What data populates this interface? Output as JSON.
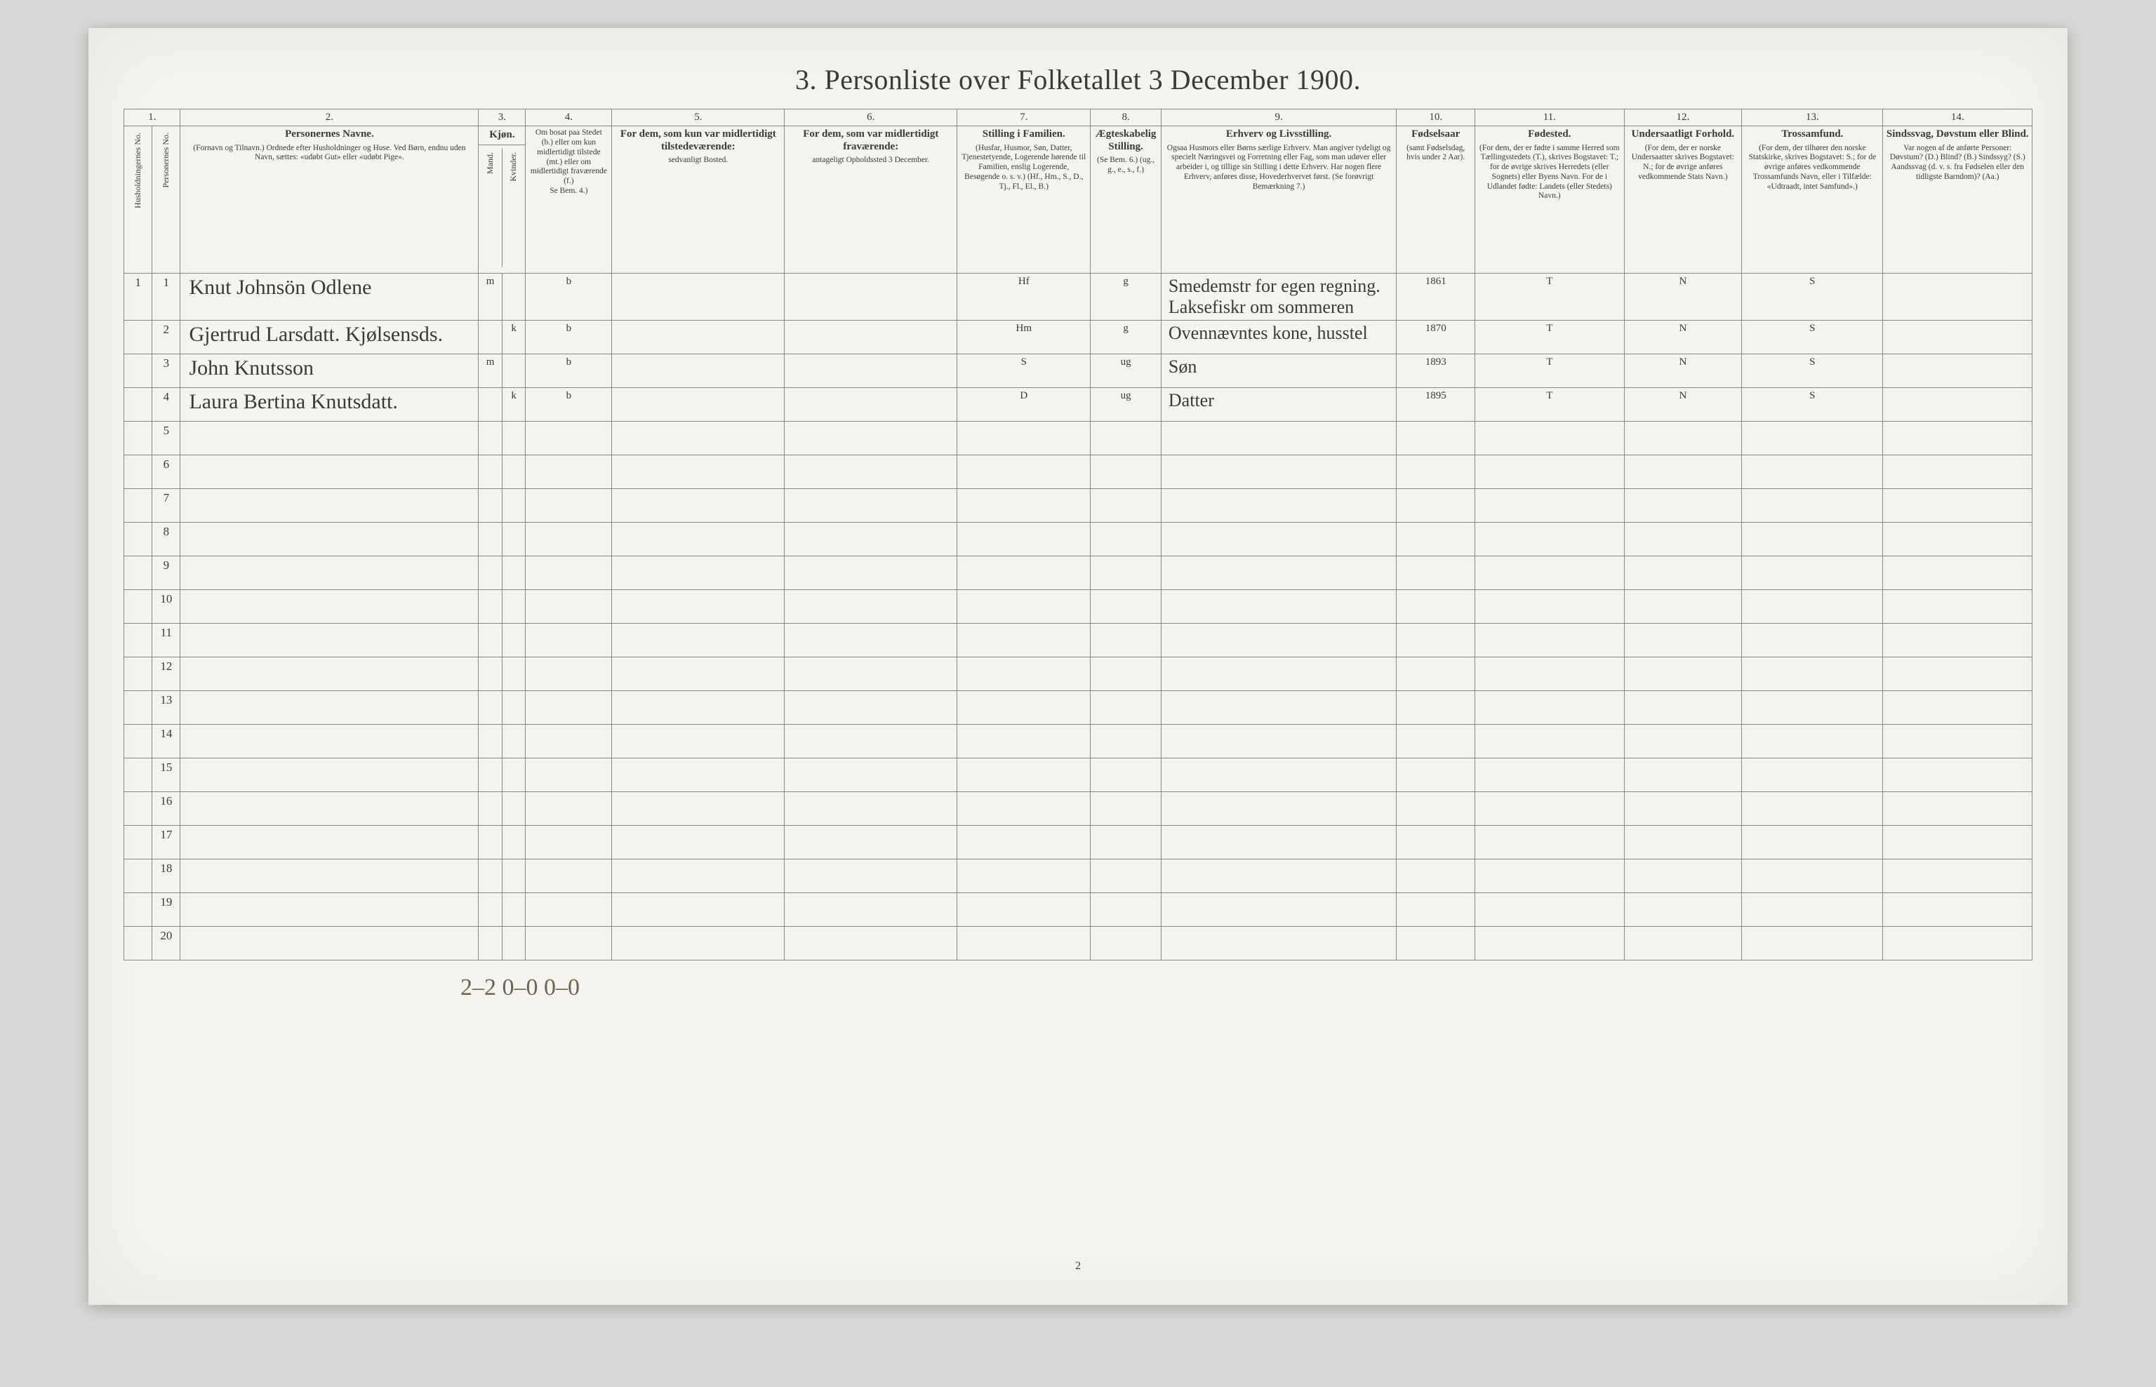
{
  "title": "3. Personliste over Folketallet 3 December 1900.",
  "colnums": [
    "1.",
    "2.",
    "3.",
    "4.",
    "5.",
    "6.",
    "7.",
    "8.",
    "9.",
    "10.",
    "11.",
    "12.",
    "13.",
    "14."
  ],
  "headers": {
    "hh": "Husholdningernes No.",
    "pn": "Personernes No.",
    "c2t": "Personernes Navne.",
    "c2s": "(Fornavn og Tilnavn.) Ordnede efter Husholdninger og Huse. Ved Børn, endnu uden Navn, sættes: «udøbt Gut» eller «udøbt Pige».",
    "c3t": "Kjøn.",
    "c3a": "Mand.",
    "c3b": "Kvinder.",
    "c4t": "Om bosat paa Stedet (b.) eller om kun midlertidigt tilstede (mt.) eller om midlertidigt fraværende (f.)",
    "c4s": "Se Bem. 4.)",
    "c5t": "For dem, som kun var midlertidigt tilstedeværende:",
    "c5s": "sedvanligt Bosted.",
    "c6t": "For dem, som var midlertidigt fraværende:",
    "c6s": "antageligt Opholdssted 3 December.",
    "c7t": "Stilling i Familien.",
    "c7s": "(Husfar, Husmor, Søn, Datter, Tjenestetyende, Logerende hørende til Familien, enslig Logerende, Besøgende o. s. v.) (Hf., Hm., S., D., Tj., Fl., El., B.)",
    "c8t": "Ægteskabelig Stilling.",
    "c8s": "(Se Bem. 6.) (ug., g., e., s., f.)",
    "c9t": "Erhverv og Livsstilling.",
    "c9s": "Ogsaa Husmors eller Børns særlige Erhverv. Man angiver tydeligt og specielt Næringsvei og Forretning eller Fag, som man udøver eller arbeider i, og tillige sin Stilling i dette Erhverv. Har nogen flere Erhverv, anføres disse, Hovederhvervet først. (Se forøvrigt Bemærkning 7.)",
    "c10t": "Fødselsaar",
    "c10s": "(samt Fødselsdag, hvis under 2 Aar).",
    "c11t": "Fødested.",
    "c11s": "(For dem, der er fødte i samme Herred som Tællingsstedets (T.), skrives Bogstavet: T.; for de øvrige skrives Herredets (eller Sognets) eller Byens Navn. For de i Udlandet fødte: Landets (eller Stedets) Navn.)",
    "c12t": "Undersaatligt Forhold.",
    "c12s": "(For dem, der er norske Undersaatter skrives Bogstavet: N.; for de øvrige anføres vedkommende Stats Navn.)",
    "c13t": "Trossamfund.",
    "c13s": "(For dem, der tilhører den norske Statskirke, skrives Bogstavet: S.; for de øvrige anføres vedkommende Trossamfunds Navn, eller i Tilfælde: «Udtraadt, intet Samfund».)",
    "c14t": "Sindssvag, Døvstum eller Blind.",
    "c14s": "Var nogen af de anførte Personer: Døvstum? (D.) Blind? (B.) Sindssyg? (S.) Aandssvag (d. v. s. fra Fødselen eller den tidligste Barndom)? (Aa.)"
  },
  "rows": [
    {
      "hh": "1",
      "pn": "1",
      "name": "Knut Johnsön Odlene",
      "sex_m": "m",
      "sex_k": "",
      "res": "b",
      "c5": "",
      "c6": "",
      "fam": "Hf",
      "mar": "g",
      "occ": "Smedemstr for egen regning. Laksefiskr om sommeren",
      "born": "1861",
      "place": "T",
      "nat": "N",
      "rel": "S",
      "dis": ""
    },
    {
      "hh": "",
      "pn": "2",
      "name": "Gjertrud Larsdatt. Kjølsensds.",
      "sex_m": "",
      "sex_k": "k",
      "res": "b",
      "c5": "",
      "c6": "",
      "fam": "Hm",
      "mar": "g",
      "occ": "Ovennævntes kone, husstel",
      "born": "1870",
      "place": "T",
      "nat": "N",
      "rel": "S",
      "dis": ""
    },
    {
      "hh": "",
      "pn": "3",
      "name": "John Knutsson",
      "sex_m": "m",
      "sex_k": "",
      "res": "b",
      "c5": "",
      "c6": "",
      "fam": "S",
      "mar": "ug",
      "occ": "Søn",
      "born": "1893",
      "place": "T",
      "nat": "N",
      "rel": "S",
      "dis": ""
    },
    {
      "hh": "",
      "pn": "4",
      "name": "Laura Bertina Knutsdatt.",
      "sex_m": "",
      "sex_k": "k",
      "res": "b",
      "c5": "",
      "c6": "",
      "fam": "D",
      "mar": "ug",
      "occ": "Datter",
      "born": "1895",
      "place": "T",
      "nat": "N",
      "rel": "S",
      "dis": ""
    }
  ],
  "emptyCount": 16,
  "footer": "2–2   0–0   0–0",
  "pagenum": "2",
  "colors": {
    "pageBg": "#f5f3ee",
    "deskBg": "#d8d8d6",
    "border": "#8a8a82",
    "ink": "#3a3a36",
    "scriptInk": "#4a4438"
  }
}
